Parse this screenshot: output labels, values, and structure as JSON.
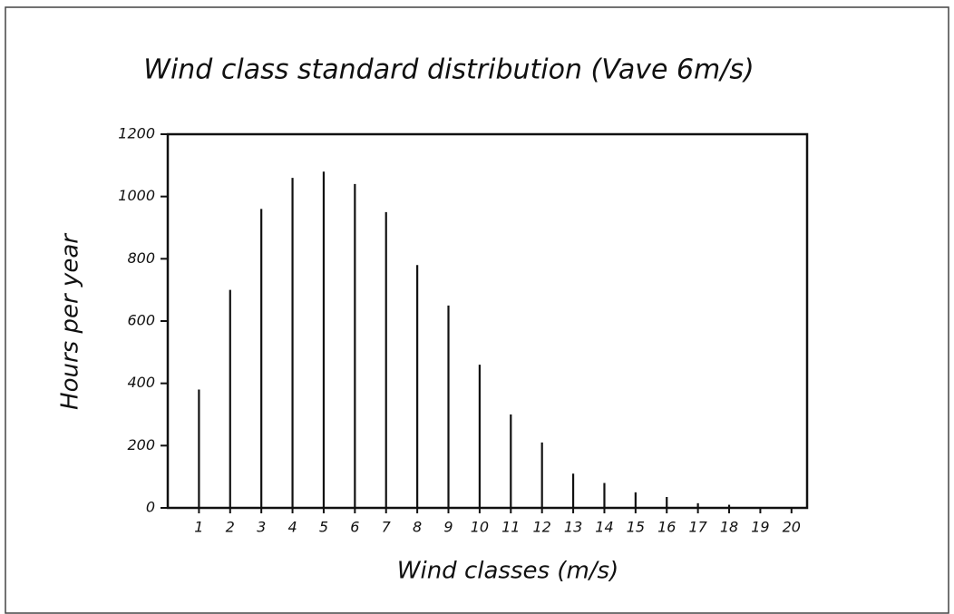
{
  "chart_data": {
    "type": "stem",
    "title": "Wind class standard distribution (Vave 6m/s)",
    "x_label": "Wind classes (m/s)",
    "y_label": "Hours per year",
    "x": [
      1,
      2,
      3,
      4,
      5,
      6,
      7,
      8,
      9,
      10,
      11,
      12,
      13,
      14,
      15,
      16,
      17,
      18,
      19,
      20
    ],
    "values": [
      380,
      700,
      960,
      1060,
      1080,
      1040,
      950,
      780,
      650,
      460,
      300,
      210,
      110,
      80,
      50,
      35,
      15,
      10,
      0,
      0
    ],
    "color": "#111111",
    "xlim": [
      0,
      20.5
    ],
    "xticks": [
      1,
      2,
      3,
      4,
      5,
      6,
      7,
      8,
      9,
      10,
      11,
      12,
      13,
      14,
      15,
      16,
      17,
      18,
      19,
      20
    ],
    "ylim": [
      0,
      1200
    ],
    "yticks": [
      0,
      200,
      400,
      600,
      800,
      1000,
      1200
    ],
    "grid": false
  }
}
